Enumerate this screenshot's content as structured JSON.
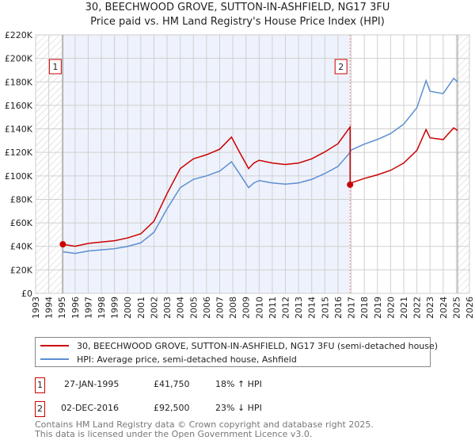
{
  "title": "30, BEECHWOOD GROVE, SUTTON-IN-ASHFIELD, NG17 3FU",
  "subtitle": "Price paid vs. HM Land Registry's House Price Index (HPI)",
  "chart_data": {
    "type": "line",
    "xlim": [
      1993,
      2026
    ],
    "ylim": [
      0,
      220000
    ],
    "yticks": [
      0,
      20000,
      40000,
      60000,
      80000,
      100000,
      120000,
      140000,
      160000,
      180000,
      200000,
      220000
    ],
    "ytick_labels": [
      "£0",
      "£20K",
      "£40K",
      "£60K",
      "£80K",
      "£100K",
      "£120K",
      "£140K",
      "£160K",
      "£180K",
      "£200K",
      "£220K"
    ],
    "xticks": [
      1993,
      1994,
      1995,
      1996,
      1997,
      1998,
      1999,
      2000,
      2001,
      2002,
      2003,
      2004,
      2005,
      2006,
      2007,
      2008,
      2009,
      2010,
      2011,
      2012,
      2013,
      2014,
      2015,
      2016,
      2017,
      2018,
      2019,
      2020,
      2021,
      2022,
      2023,
      2024,
      2025,
      2026
    ],
    "grid": true,
    "shaded_range": [
      1995.07,
      2016.92
    ],
    "hatched_ranges": [
      [
        1993,
        1995.07
      ],
      [
        2025.1,
        2026
      ]
    ],
    "series": [
      {
        "name": "30, BEECHWOOD GROVE, SUTTON-IN-ASHFIELD, NG17 3FU (semi-detached house)",
        "color": "#cc0000",
        "x": [
          1995.07,
          1996,
          1997,
          1998,
          1999,
          2000,
          2001,
          2002,
          2003,
          2004,
          2005,
          2006,
          2007,
          2007.9,
          2008.5,
          2009.2,
          2009.6,
          2010,
          2011,
          2012,
          2013,
          2014,
          2015,
          2016,
          2016.92,
          2016.92,
          2017,
          2018,
          2019,
          2020,
          2021,
          2022,
          2022.7,
          2023,
          2024,
          2024.8,
          2025.1
        ],
        "y": [
          41750,
          40100,
          42500,
          43700,
          44800,
          47200,
          50700,
          61400,
          85000,
          106200,
          114500,
          118000,
          122700,
          133000,
          120400,
          106200,
          110900,
          113300,
          110900,
          109700,
          110900,
          114500,
          120400,
          127400,
          141600,
          92500,
          94000,
          97800,
          100900,
          104700,
          110900,
          121700,
          139400,
          132400,
          130900,
          140900,
          138600
        ]
      },
      {
        "name": "HPI: Average price, semi-detached house, Ashfield",
        "color": "#5b8fd0",
        "x": [
          1995.07,
          1996,
          1997,
          1998,
          1999,
          2000,
          2001,
          2002,
          2003,
          2004,
          2005,
          2006,
          2007,
          2007.9,
          2008.5,
          2009.2,
          2009.6,
          2010,
          2011,
          2012,
          2013,
          2014,
          2015,
          2016,
          2016.92,
          2017,
          2018,
          2019,
          2020,
          2021,
          2022,
          2022.7,
          2023,
          2024,
          2024.8,
          2025.1
        ],
        "y": [
          35400,
          34000,
          36000,
          37000,
          38000,
          40000,
          43000,
          52000,
          72000,
          90000,
          97000,
          100000,
          104000,
          112000,
          102000,
          90000,
          94000,
          96000,
          94000,
          93000,
          94000,
          97000,
          102000,
          108000,
          120000,
          122000,
          127000,
          131000,
          136000,
          144000,
          158000,
          181000,
          172000,
          170000,
          183000,
          180000
        ]
      }
    ],
    "sales": [
      {
        "label": "1",
        "date": "27-JAN-1995",
        "price": "£41,750",
        "hpi": "18% ↑ HPI",
        "x": 1995.07,
        "y": 41750
      },
      {
        "label": "2",
        "date": "02-DEC-2016",
        "price": "£92,500",
        "hpi": "23% ↓ HPI",
        "x": 2016.92,
        "y": 92500
      }
    ]
  },
  "legend": {
    "red": "30, BEECHWOOD GROVE, SUTTON-IN-ASHFIELD, NG17 3FU (semi-detached house)",
    "blue": "HPI: Average price, semi-detached house, Ashfield"
  },
  "footer": {
    "line1": "Contains HM Land Registry data © Crown copyright and database right 2025.",
    "line2": "This data is licensed under the Open Government Licence v3.0."
  }
}
